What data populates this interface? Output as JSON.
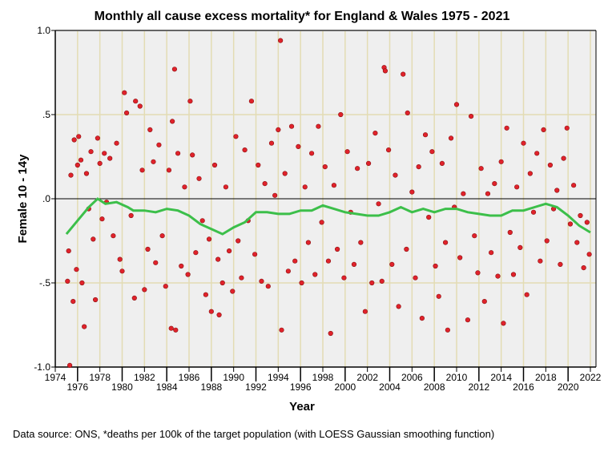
{
  "chart_data": {
    "type": "scatter",
    "title": "Monthly all cause excess mortality* for England & Wales 1975 - 2021",
    "xlabel": "Year",
    "ylabel": "Female 10 - 14y",
    "xlim": [
      1974,
      2022
    ],
    "ylim": [
      -1.0,
      1.0
    ],
    "yticks": [
      {
        "v": 1.0,
        "label": "1.0"
      },
      {
        "v": 0.5,
        "label": ".5"
      },
      {
        "v": 0.0,
        "label": ".0"
      },
      {
        "v": -0.5,
        "label": "-.5"
      },
      {
        "v": -1.0,
        "label": "-1.0"
      }
    ],
    "xticks_upper": [
      "1974",
      "1978",
      "1982",
      "1986",
      "1990",
      "1994",
      "1998",
      "2002",
      "2006",
      "2010",
      "2014",
      "2018",
      "2022"
    ],
    "xticks_lower": [
      "1976",
      "1980",
      "1984",
      "1988",
      "1992",
      "1996",
      "2000",
      "2004",
      "2008",
      "2012",
      "2016",
      "2020"
    ],
    "grid": true,
    "note": "Data source: ONS, *deaths per 100k of the target population (with LOESS Gaussian smoothing function)",
    "colors": {
      "point": "#e0222b",
      "point_edge": "#8a1010",
      "smooth": "#3cbf4a",
      "plot_bg": "#efefef",
      "grid": "#e3dcb4"
    },
    "points": [
      [
        1975.1,
        -0.49
      ],
      [
        1975.3,
        -0.99
      ],
      [
        1975.2,
        -0.31
      ],
      [
        1975.4,
        0.14
      ],
      [
        1975.6,
        -0.61
      ],
      [
        1975.7,
        0.35
      ],
      [
        1975.9,
        -0.42
      ],
      [
        1976.0,
        0.2
      ],
      [
        1976.1,
        0.37
      ],
      [
        1976.3,
        0.23
      ],
      [
        1976.4,
        -0.5
      ],
      [
        1976.6,
        -0.76
      ],
      [
        1976.8,
        0.15
      ],
      [
        1977.0,
        -0.06
      ],
      [
        1977.2,
        0.28
      ],
      [
        1977.4,
        -0.24
      ],
      [
        1977.6,
        -0.6
      ],
      [
        1977.8,
        0.36
      ],
      [
        1978.0,
        0.21
      ],
      [
        1978.2,
        -0.12
      ],
      [
        1978.4,
        0.27
      ],
      [
        1978.6,
        -0.02
      ],
      [
        1978.9,
        0.24
      ],
      [
        1979.2,
        -0.22
      ],
      [
        1979.5,
        0.33
      ],
      [
        1979.8,
        -0.36
      ],
      [
        1980.0,
        -0.43
      ],
      [
        1980.2,
        0.63
      ],
      [
        1980.4,
        0.51
      ],
      [
        1980.8,
        -0.1
      ],
      [
        1981.1,
        -0.59
      ],
      [
        1981.2,
        0.58
      ],
      [
        1981.6,
        0.55
      ],
      [
        1981.8,
        0.17
      ],
      [
        1982.0,
        -0.54
      ],
      [
        1982.3,
        -0.3
      ],
      [
        1982.5,
        0.41
      ],
      [
        1982.8,
        0.22
      ],
      [
        1983.0,
        -0.38
      ],
      [
        1983.3,
        0.32
      ],
      [
        1983.6,
        -0.22
      ],
      [
        1983.9,
        -0.52
      ],
      [
        1984.2,
        0.17
      ],
      [
        1984.4,
        -0.77
      ],
      [
        1984.5,
        0.46
      ],
      [
        1984.7,
        0.77
      ],
      [
        1984.8,
        -0.78
      ],
      [
        1985.0,
        0.27
      ],
      [
        1985.3,
        -0.4
      ],
      [
        1985.6,
        0.07
      ],
      [
        1985.9,
        -0.45
      ],
      [
        1986.1,
        0.58
      ],
      [
        1986.3,
        0.26
      ],
      [
        1986.6,
        -0.32
      ],
      [
        1986.9,
        0.12
      ],
      [
        1987.2,
        -0.13
      ],
      [
        1987.5,
        -0.57
      ],
      [
        1987.8,
        -0.24
      ],
      [
        1988.0,
        -0.67
      ],
      [
        1988.3,
        0.2
      ],
      [
        1988.6,
        -0.36
      ],
      [
        1988.7,
        -0.69
      ],
      [
        1989.0,
        -0.5
      ],
      [
        1989.3,
        0.07
      ],
      [
        1989.6,
        -0.31
      ],
      [
        1989.9,
        -0.55
      ],
      [
        1990.2,
        0.37
      ],
      [
        1990.4,
        -0.25
      ],
      [
        1990.7,
        -0.47
      ],
      [
        1991.0,
        0.29
      ],
      [
        1991.3,
        -0.13
      ],
      [
        1991.6,
        0.58
      ],
      [
        1991.9,
        -0.33
      ],
      [
        1992.2,
        0.2
      ],
      [
        1992.5,
        -0.49
      ],
      [
        1992.8,
        0.09
      ],
      [
        1993.1,
        -0.52
      ],
      [
        1993.4,
        0.33
      ],
      [
        1993.7,
        0.02
      ],
      [
        1994.0,
        0.41
      ],
      [
        1994.2,
        0.94
      ],
      [
        1994.3,
        -0.78
      ],
      [
        1994.6,
        0.15
      ],
      [
        1994.9,
        -0.43
      ],
      [
        1995.2,
        0.43
      ],
      [
        1995.5,
        -0.37
      ],
      [
        1995.8,
        0.31
      ],
      [
        1996.1,
        -0.5
      ],
      [
        1996.4,
        0.07
      ],
      [
        1996.7,
        -0.26
      ],
      [
        1997.0,
        0.27
      ],
      [
        1997.3,
        -0.45
      ],
      [
        1997.6,
        0.43
      ],
      [
        1997.9,
        -0.14
      ],
      [
        1998.2,
        0.19
      ],
      [
        1998.5,
        -0.37
      ],
      [
        1998.7,
        -0.8
      ],
      [
        1999.0,
        0.08
      ],
      [
        1999.3,
        -0.3
      ],
      [
        1999.6,
        0.5
      ],
      [
        1999.9,
        -0.47
      ],
      [
        2000.2,
        0.28
      ],
      [
        2000.5,
        -0.08
      ],
      [
        2000.8,
        -0.39
      ],
      [
        2001.1,
        0.18
      ],
      [
        2001.4,
        -0.26
      ],
      [
        2001.8,
        -0.67
      ],
      [
        2002.1,
        0.21
      ],
      [
        2002.4,
        -0.5
      ],
      [
        2002.7,
        0.39
      ],
      [
        2003.0,
        -0.03
      ],
      [
        2003.3,
        -0.49
      ],
      [
        2003.5,
        0.78
      ],
      [
        2003.6,
        0.76
      ],
      [
        2003.9,
        0.29
      ],
      [
        2004.2,
        -0.39
      ],
      [
        2004.5,
        0.14
      ],
      [
        2004.8,
        -0.64
      ],
      [
        2005.2,
        0.74
      ],
      [
        2005.5,
        -0.3
      ],
      [
        2005.6,
        0.51
      ],
      [
        2006.0,
        0.04
      ],
      [
        2006.3,
        -0.47
      ],
      [
        2006.6,
        0.19
      ],
      [
        2006.9,
        -0.71
      ],
      [
        2007.2,
        0.38
      ],
      [
        2007.5,
        -0.11
      ],
      [
        2007.8,
        0.28
      ],
      [
        2008.1,
        -0.4
      ],
      [
        2008.4,
        -0.58
      ],
      [
        2008.7,
        0.21
      ],
      [
        2009.0,
        -0.26
      ],
      [
        2009.2,
        -0.78
      ],
      [
        2009.5,
        0.36
      ],
      [
        2009.8,
        -0.05
      ],
      [
        2010.0,
        0.56
      ],
      [
        2010.3,
        -0.35
      ],
      [
        2010.6,
        0.03
      ],
      [
        2011.0,
        -0.72
      ],
      [
        2011.3,
        0.49
      ],
      [
        2011.6,
        -0.22
      ],
      [
        2011.9,
        -0.44
      ],
      [
        2012.2,
        0.18
      ],
      [
        2012.5,
        -0.61
      ],
      [
        2012.8,
        0.03
      ],
      [
        2013.1,
        -0.32
      ],
      [
        2013.4,
        0.09
      ],
      [
        2013.7,
        -0.46
      ],
      [
        2014.0,
        0.22
      ],
      [
        2014.2,
        -0.74
      ],
      [
        2014.5,
        0.42
      ],
      [
        2014.8,
        -0.2
      ],
      [
        2015.1,
        -0.45
      ],
      [
        2015.4,
        0.07
      ],
      [
        2015.7,
        -0.29
      ],
      [
        2016.0,
        0.33
      ],
      [
        2016.3,
        -0.57
      ],
      [
        2016.6,
        0.15
      ],
      [
        2016.9,
        -0.08
      ],
      [
        2017.2,
        0.27
      ],
      [
        2017.5,
        -0.37
      ],
      [
        2017.8,
        0.41
      ],
      [
        2018.1,
        -0.25
      ],
      [
        2018.4,
        0.2
      ],
      [
        2018.7,
        -0.06
      ],
      [
        2019.0,
        0.05
      ],
      [
        2019.3,
        -0.39
      ],
      [
        2019.6,
        0.24
      ],
      [
        2019.9,
        0.42
      ],
      [
        2020.2,
        -0.15
      ],
      [
        2020.5,
        0.08
      ],
      [
        2020.8,
        -0.26
      ],
      [
        2021.1,
        -0.1
      ],
      [
        2021.4,
        -0.41
      ],
      [
        2021.7,
        -0.14
      ],
      [
        2021.9,
        -0.33
      ]
    ],
    "smooth": [
      [
        1975,
        -0.21
      ],
      [
        1976,
        -0.13
      ],
      [
        1977,
        -0.05
      ],
      [
        1977.8,
        0.0
      ],
      [
        1978.5,
        -0.03
      ],
      [
        1979.5,
        -0.02
      ],
      [
        1980.5,
        -0.05
      ],
      [
        1981,
        -0.07
      ],
      [
        1982,
        -0.07
      ],
      [
        1983,
        -0.08
      ],
      [
        1984,
        -0.06
      ],
      [
        1985,
        -0.07
      ],
      [
        1986,
        -0.1
      ],
      [
        1987,
        -0.15
      ],
      [
        1988,
        -0.18
      ],
      [
        1989,
        -0.21
      ],
      [
        1990,
        -0.17
      ],
      [
        1991,
        -0.14
      ],
      [
        1992,
        -0.08
      ],
      [
        1993,
        -0.08
      ],
      [
        1994,
        -0.09
      ],
      [
        1995,
        -0.09
      ],
      [
        1996,
        -0.07
      ],
      [
        1997,
        -0.07
      ],
      [
        1998,
        -0.04
      ],
      [
        1999,
        -0.06
      ],
      [
        2000,
        -0.08
      ],
      [
        2001,
        -0.09
      ],
      [
        2002,
        -0.1
      ],
      [
        2003,
        -0.1
      ],
      [
        2004,
        -0.08
      ],
      [
        2005,
        -0.05
      ],
      [
        2006,
        -0.08
      ],
      [
        2007,
        -0.06
      ],
      [
        2008,
        -0.08
      ],
      [
        2009,
        -0.06
      ],
      [
        2010,
        -0.06
      ],
      [
        2011,
        -0.08
      ],
      [
        2012,
        -0.09
      ],
      [
        2013,
        -0.1
      ],
      [
        2014,
        -0.1
      ],
      [
        2015,
        -0.07
      ],
      [
        2016,
        -0.07
      ],
      [
        2017,
        -0.05
      ],
      [
        2018,
        -0.03
      ],
      [
        2019,
        -0.05
      ],
      [
        2020,
        -0.1
      ],
      [
        2021,
        -0.16
      ],
      [
        2022,
        -0.2
      ]
    ]
  }
}
